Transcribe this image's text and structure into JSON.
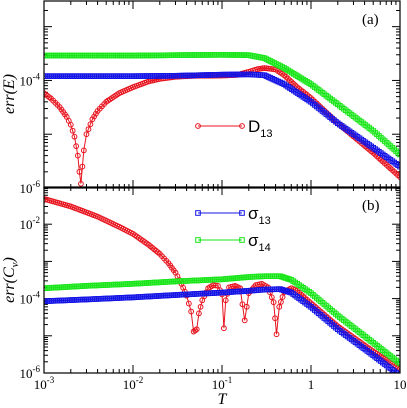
{
  "chart_data": [
    {
      "type": "line",
      "panel_label": "(a)",
      "ylabel": "err(E)",
      "xlabel": "",
      "xscale": "log",
      "yscale": "log",
      "xlim": [
        0.001,
        10
      ],
      "ylim": [
        1e-06,
        0.003
      ],
      "yticks": [
        {
          "value": 0.0001,
          "label": "10",
          "exp": "-4"
        },
        {
          "value": 1e-06,
          "label": "10",
          "exp": "-6"
        }
      ],
      "legend": {
        "placement": "center",
        "entries": [
          {
            "label": "D",
            "sub": "13",
            "series": "D13"
          }
        ]
      },
      "grid": false,
      "series": [
        {
          "name": "D13",
          "color": "#e8141e",
          "marker": "circle",
          "points": [
            [
              0.001,
              5.8e-05
            ],
            [
              0.0012,
              4.6e-05
            ],
            [
              0.0015,
              3.2e-05
            ],
            [
              0.0018,
              2.1e-05
            ],
            [
              0.002,
              1.5e-05
            ],
            [
              0.0022,
              9e-06
            ],
            [
              0.0024,
              4e-06
            ],
            [
              0.0025,
              2e-06
            ],
            [
              0.0026,
              1.2e-06
            ],
            [
              0.0027,
              2.5e-06
            ],
            [
              0.0028,
              5e-06
            ],
            [
              0.003,
              1e-05
            ],
            [
              0.0035,
              1.9e-05
            ],
            [
              0.004,
              2.7e-05
            ],
            [
              0.005,
              4e-05
            ],
            [
              0.007,
              5.8e-05
            ],
            [
              0.01,
              7.5e-05
            ],
            [
              0.015,
              9.6e-05
            ],
            [
              0.02,
              0.000107
            ],
            [
              0.03,
              0.000117
            ],
            [
              0.05,
              0.000122
            ],
            [
              0.1,
              0.000123
            ],
            [
              0.15,
              0.000127
            ],
            [
              0.2,
              0.000145
            ],
            [
              0.25,
              0.000162
            ],
            [
              0.3,
              0.00017
            ],
            [
              0.4,
              0.00016
            ],
            [
              0.5,
              0.000125
            ],
            [
              0.7,
              7.5e-05
            ],
            [
              1,
              4.7e-05
            ],
            [
              2,
              1.6e-05
            ],
            [
              5,
              4.5e-06
            ],
            [
              10,
              1.6e-06
            ]
          ]
        },
        {
          "name": "σ13",
          "color": "#1414e6",
          "marker": "square",
          "points": [
            [
              0.001,
              0.00012
            ],
            [
              0.003,
              0.00012
            ],
            [
              0.01,
              0.00012
            ],
            [
              0.03,
              0.000122
            ],
            [
              0.1,
              0.000128
            ],
            [
              0.2,
              0.00013
            ],
            [
              0.3,
              0.000125
            ],
            [
              0.5,
              8.5e-05
            ],
            [
              1,
              4e-05
            ],
            [
              2,
              1.6e-05
            ],
            [
              5,
              5.6e-06
            ],
            [
              10,
              2.5e-06
            ]
          ]
        },
        {
          "name": "σ14",
          "color": "#19e619",
          "marker": "square",
          "points": [
            [
              0.001,
              0.00029
            ],
            [
              0.003,
              0.00029
            ],
            [
              0.01,
              0.00029
            ],
            [
              0.03,
              0.000295
            ],
            [
              0.1,
              0.0003
            ],
            [
              0.2,
              0.000295
            ],
            [
              0.3,
              0.00026
            ],
            [
              0.5,
              0.00017
            ],
            [
              1,
              8.5e-05
            ],
            [
              2,
              3.6e-05
            ],
            [
              5,
              1.15e-05
            ],
            [
              10,
              4.2e-06
            ]
          ]
        }
      ]
    },
    {
      "type": "line",
      "panel_label": "(b)",
      "ylabel": "err(C_v)",
      "xlabel": "T",
      "xscale": "log",
      "yscale": "log",
      "xlim": [
        0.001,
        10
      ],
      "ylim": [
        1e-06,
        0.1
      ],
      "xticks": [
        {
          "value": 0.001,
          "label": "10",
          "exp": "-3"
        },
        {
          "value": 0.01,
          "label": "10",
          "exp": "-2"
        },
        {
          "value": 0.1,
          "label": "10",
          "exp": "-1"
        },
        {
          "value": 1,
          "label": "1",
          "exp": ""
        },
        {
          "value": 10,
          "label": "10",
          "exp": ""
        }
      ],
      "yticks": [
        {
          "value": 1e-06,
          "label": "10",
          "exp": "-6"
        },
        {
          "value": 0.0001,
          "label": "10",
          "exp": "-4"
        },
        {
          "value": 0.01,
          "label": "10",
          "exp": "-2"
        }
      ],
      "legend": {
        "placement": "top-center",
        "entries": [
          {
            "label": "σ",
            "sub": "13",
            "series": "σ13"
          },
          {
            "label": "σ",
            "sub": "14",
            "series": "σ14"
          }
        ]
      },
      "grid": false,
      "series": [
        {
          "name": "D13",
          "color": "#e8141e",
          "marker": "circle",
          "points": [
            [
              0.001,
              0.048
            ],
            [
              0.002,
              0.03
            ],
            [
              0.004,
              0.016
            ],
            [
              0.007,
              0.0085
            ],
            [
              0.01,
              0.0055
            ],
            [
              0.015,
              0.0028
            ],
            [
              0.02,
              0.0016
            ],
            [
              0.025,
              0.0009
            ],
            [
              0.03,
              0.0005
            ],
            [
              0.035,
              0.00025
            ],
            [
              0.04,
              0.00012
            ],
            [
              0.045,
              4.5e-05
            ],
            [
              0.048,
              1.3e-05
            ],
            [
              0.052,
              1.5e-05
            ],
            [
              0.055,
              4e-05
            ],
            [
              0.06,
              9e-05
            ],
            [
              0.07,
              0.00019
            ],
            [
              0.08,
              0.00023
            ],
            [
              0.09,
              0.00022
            ],
            [
              0.1,
              0.00013
            ],
            [
              0.105,
              1.6e-05
            ],
            [
              0.11,
              9e-05
            ],
            [
              0.12,
              0.0002
            ],
            [
              0.14,
              0.00022
            ],
            [
              0.16,
              0.00019
            ],
            [
              0.18,
              2.6e-05
            ],
            [
              0.2,
              0.00014
            ],
            [
              0.24,
              0.00023
            ],
            [
              0.28,
              0.00025
            ],
            [
              0.33,
              0.0002
            ],
            [
              0.38,
              8e-05
            ],
            [
              0.41,
              1.1e-05
            ],
            [
              0.44,
              6e-05
            ],
            [
              0.5,
              0.00015
            ],
            [
              0.6,
              0.00019
            ],
            [
              0.7,
              0.00016
            ],
            [
              1,
              7.5e-05
            ],
            [
              2,
              1.8e-05
            ],
            [
              5,
              3.8e-06
            ],
            [
              10,
              1.3e-06
            ]
          ]
        },
        {
          "name": "σ13",
          "color": "#1414e6",
          "marker": "square",
          "points": [
            [
              0.001,
              8.5e-05
            ],
            [
              0.003,
              9.5e-05
            ],
            [
              0.01,
              0.000108
            ],
            [
              0.03,
              0.000125
            ],
            [
              0.1,
              0.000145
            ],
            [
              0.2,
              0.000162
            ],
            [
              0.3,
              0.000175
            ],
            [
              0.45,
              0.00018
            ],
            [
              0.6,
              0.000145
            ],
            [
              1,
              6e-05
            ],
            [
              2,
              1.5e-05
            ],
            [
              5,
              3e-06
            ],
            [
              10,
              8.5e-07
            ]
          ]
        },
        {
          "name": "σ14",
          "color": "#19e619",
          "marker": "square",
          "points": [
            [
              0.001,
              0.00019
            ],
            [
              0.003,
              0.00022
            ],
            [
              0.01,
              0.00025
            ],
            [
              0.03,
              0.00029
            ],
            [
              0.1,
              0.00033
            ],
            [
              0.2,
              0.00038
            ],
            [
              0.3,
              0.0004
            ],
            [
              0.45,
              0.0004
            ],
            [
              0.6,
              0.00032
            ],
            [
              1,
              0.00014
            ],
            [
              2,
              3.5e-05
            ],
            [
              5,
              6.5e-06
            ],
            [
              10,
              1.8e-06
            ]
          ]
        }
      ]
    }
  ]
}
